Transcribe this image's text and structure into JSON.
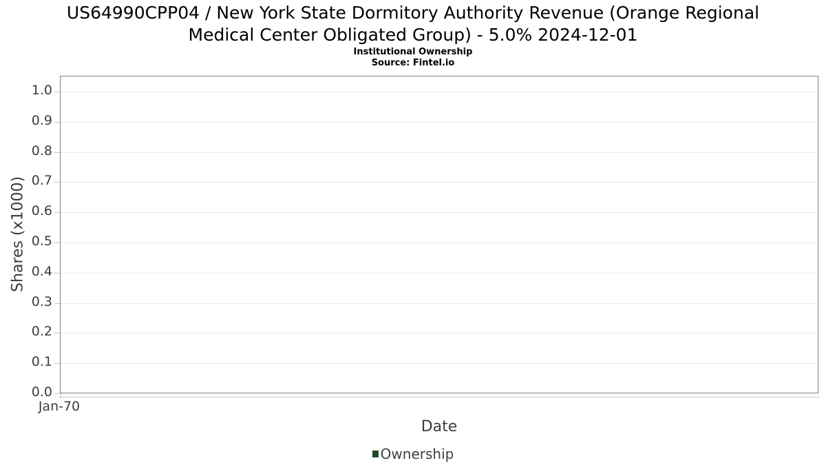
{
  "chart_data": {
    "type": "line",
    "title_lines": [
      "US64990CPP04 / New York State Dormitory Authority Revenue (Orange Regional",
      "Medical Center Obligated Group) - 5.0% 2024-12-01"
    ],
    "subtitle": "Institutional Ownership",
    "source": "Source: Fintel.io",
    "xlabel": "Date",
    "ylabel": "Shares (x1000)",
    "xticks": [
      "Jan-70"
    ],
    "yticks": [
      "0.0",
      "0.1",
      "0.2",
      "0.3",
      "0.4",
      "0.5",
      "0.6",
      "0.7",
      "0.8",
      "0.9",
      "1.0"
    ],
    "ylim": [
      0.0,
      1.05
    ],
    "grid": true,
    "legend_position": "bottom",
    "series": [
      {
        "name": "Ownership",
        "color": "#1e4a29",
        "x": [],
        "y": []
      }
    ]
  }
}
